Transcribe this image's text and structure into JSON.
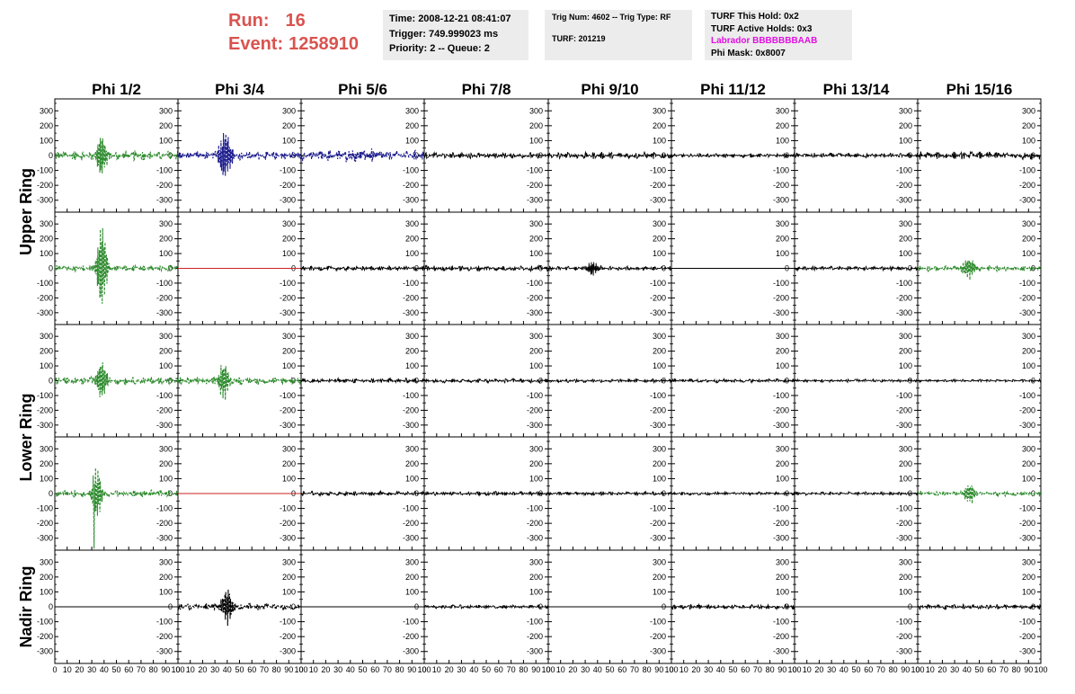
{
  "header": {
    "run_label": "Run:",
    "run_value": "16",
    "event_label": "Event:",
    "event_value": "1258910"
  },
  "info_time": {
    "time": "Time: 2008-12-21 08:41:07",
    "trigger": "Trigger: 749.999023 ms",
    "priority": "Priority: 2 -- Queue: 2"
  },
  "info_trig": {
    "trig": "Trig Num: 4602 -- Trig Type: RF",
    "turf": "TURF: 201219"
  },
  "info_turf": {
    "hold": "TURF This Hold: 0x2",
    "active": "TURF Active Holds: 0x3",
    "labrador": "Labrador BBBBBBBAAB",
    "phimask": "Phi Mask: 0x8007"
  },
  "colors": {
    "run_text": "#d9534f",
    "green": "#2e8b2e",
    "blue": "#1a1a8c",
    "black": "#000000",
    "red": "#cc2222",
    "magenta": "#e010e0",
    "info_bg": "#ececec"
  },
  "chart_data": {
    "type": "line",
    "columns": [
      "Phi 1/2",
      "Phi 3/4",
      "Phi 5/6",
      "Phi 7/8",
      "Phi 9/10",
      "Phi 11/12",
      "Phi 13/14",
      "Phi 15/16"
    ],
    "rows": [
      "Upper Ring",
      "Upper Ring",
      "Lower Ring",
      "Lower Ring",
      "Nadir Ring"
    ],
    "ylim": [
      -380,
      380
    ],
    "xlim": [
      0,
      100
    ],
    "yticks": [
      300,
      200,
      100,
      0,
      -100,
      -200,
      -300
    ],
    "xticks": [
      "0",
      "10",
      "20",
      "30",
      "40",
      "50",
      "60",
      "70",
      "80",
      "90",
      "100"
    ],
    "panels": [
      [
        {
          "color": "green",
          "style": "dashed",
          "amp": 35,
          "burst": {
            "center": 38,
            "width": 4,
            "amp": 160
          }
        },
        {
          "color": "blue",
          "style": "dashed",
          "amp": 30,
          "burst": {
            "center": 38,
            "width": 5,
            "amp": 190
          }
        },
        {
          "color": "blue",
          "style": "dashed",
          "amp": 35,
          "burst": {
            "center": 46,
            "width": 22,
            "amp": 22
          }
        },
        {
          "color": "black",
          "style": "solid",
          "amp": 22
        },
        {
          "color": "black",
          "style": "solid",
          "amp": 25
        },
        {
          "color": "black",
          "style": "solid",
          "amp": 14
        },
        {
          "color": "black",
          "style": "solid",
          "amp": 18
        },
        {
          "color": "black",
          "style": "solid",
          "amp": 28
        }
      ],
      [
        {
          "color": "green",
          "style": "dashed",
          "amp": 22,
          "burst": {
            "center": 38,
            "width": 4,
            "amp": 330
          }
        },
        {
          "color": "red",
          "style": "solid",
          "amp": 0
        },
        {
          "color": "black",
          "style": "solid",
          "amp": 18
        },
        {
          "color": "black",
          "style": "solid",
          "amp": 20
        },
        {
          "color": "black",
          "style": "solid",
          "amp": 16,
          "burst": {
            "center": 36,
            "width": 5,
            "amp": 55
          }
        },
        {
          "color": "black",
          "style": "solid",
          "amp": 0
        },
        {
          "color": "black",
          "style": "solid",
          "amp": 15
        },
        {
          "color": "green",
          "style": "dashed",
          "amp": 20,
          "burst": {
            "center": 42,
            "width": 5,
            "amp": 80
          }
        }
      ],
      [
        {
          "color": "green",
          "style": "dashed",
          "amp": 28,
          "burst": {
            "center": 38,
            "width": 4,
            "amp": 150
          }
        },
        {
          "color": "green",
          "style": "dashed",
          "amp": 28,
          "burst": {
            "center": 37,
            "width": 4,
            "amp": 150
          }
        },
        {
          "color": "black",
          "style": "solid",
          "amp": 18
        },
        {
          "color": "black",
          "style": "solid",
          "amp": 16
        },
        {
          "color": "black",
          "style": "solid",
          "amp": 14
        },
        {
          "color": "black",
          "style": "solid",
          "amp": 14
        },
        {
          "color": "black",
          "style": "solid",
          "amp": 12
        },
        {
          "color": "black",
          "style": "solid",
          "amp": 10
        }
      ],
      [
        {
          "color": "green",
          "style": "dashed",
          "amp": 25,
          "burst": {
            "center": 34,
            "width": 4,
            "amp": 200
          },
          "spike": {
            "x": 32,
            "y": -370
          }
        },
        {
          "color": "red",
          "style": "solid",
          "amp": 0
        },
        {
          "color": "black",
          "style": "solid",
          "amp": 16
        },
        {
          "color": "black",
          "style": "solid",
          "amp": 16
        },
        {
          "color": "black",
          "style": "solid",
          "amp": 14
        },
        {
          "color": "black",
          "style": "solid",
          "amp": 12
        },
        {
          "color": "black",
          "style": "solid",
          "amp": 12
        },
        {
          "color": "green",
          "style": "dashed",
          "amp": 18,
          "burst": {
            "center": 42,
            "width": 5,
            "amp": 75
          }
        }
      ],
      [
        {
          "color": "black",
          "style": "solid",
          "amp": 0
        },
        {
          "color": "black",
          "style": "dashed",
          "amp": 26,
          "burst": {
            "center": 40,
            "width": 5,
            "amp": 130
          }
        },
        {
          "color": "black",
          "style": "solid",
          "amp": 0
        },
        {
          "color": "black",
          "style": "solid",
          "amp": 14
        },
        {
          "color": "black",
          "style": "solid",
          "amp": 0
        },
        {
          "color": "black",
          "style": "solid",
          "amp": 18
        },
        {
          "color": "black",
          "style": "solid",
          "amp": 0
        },
        {
          "color": "black",
          "style": "solid",
          "amp": 18
        }
      ]
    ]
  }
}
